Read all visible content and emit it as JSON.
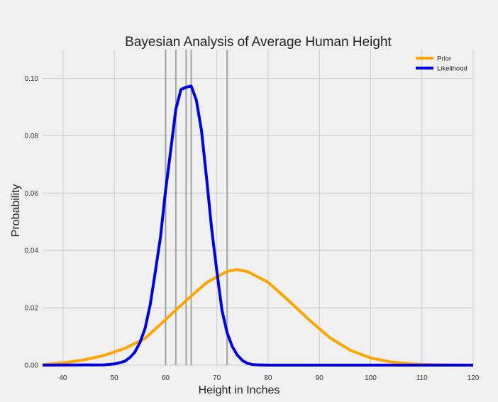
{
  "chart_data": {
    "type": "line",
    "title": "Bayesian Analysis of Average Human Height",
    "xlabel": "Height in Inches",
    "ylabel": "Probability",
    "xlim": [
      36,
      120
    ],
    "ylim": [
      0,
      0.11
    ],
    "xticks": [
      40,
      50,
      60,
      70,
      80,
      90,
      100,
      110,
      120
    ],
    "yticks": [
      0.0,
      0.02,
      0.04,
      0.06,
      0.08,
      0.1
    ],
    "ytick_labels": [
      "0.00",
      "0.02",
      "0.04",
      "0.06",
      "0.08",
      "0.10"
    ],
    "grid": true,
    "legend_position": "top-right",
    "observed_heights": [
      60,
      62,
      64,
      65,
      72
    ],
    "series": [
      {
        "name": "Prior",
        "color": "#ffa500",
        "x": [
          36,
          40,
          44,
          48,
          52,
          56,
          60,
          64,
          68,
          72,
          74,
          76,
          80,
          84,
          88,
          92,
          96,
          100,
          104,
          108,
          112,
          116,
          120
        ],
        "y": [
          0.0002,
          0.0008,
          0.0018,
          0.0034,
          0.0058,
          0.0093,
          0.0159,
          0.0225,
          0.0288,
          0.0327,
          0.0333,
          0.0326,
          0.0289,
          0.0225,
          0.0158,
          0.0096,
          0.0052,
          0.0025,
          0.0011,
          0.0004,
          0.0002,
          0.0001,
          0.0
        ]
      },
      {
        "name": "Likelihood",
        "color": "#0000e6",
        "x": [
          36,
          48,
          50,
          52,
          53,
          54,
          55,
          56,
          57,
          58,
          59,
          60,
          61,
          62,
          63,
          64,
          65,
          66,
          67,
          68,
          69,
          70,
          71,
          72,
          73,
          74,
          75,
          76,
          77,
          78,
          80,
          85,
          120
        ],
        "y": [
          0.0,
          0.0001,
          0.0004,
          0.0013,
          0.0026,
          0.0045,
          0.0079,
          0.0128,
          0.0211,
          0.0326,
          0.0446,
          0.0609,
          0.0749,
          0.0892,
          0.0961,
          0.0969,
          0.0973,
          0.0924,
          0.0818,
          0.0651,
          0.0473,
          0.0327,
          0.0191,
          0.0113,
          0.0065,
          0.0035,
          0.0016,
          0.0006,
          0.0002,
          0.0001,
          0.0,
          0.0,
          0.0
        ]
      }
    ]
  }
}
